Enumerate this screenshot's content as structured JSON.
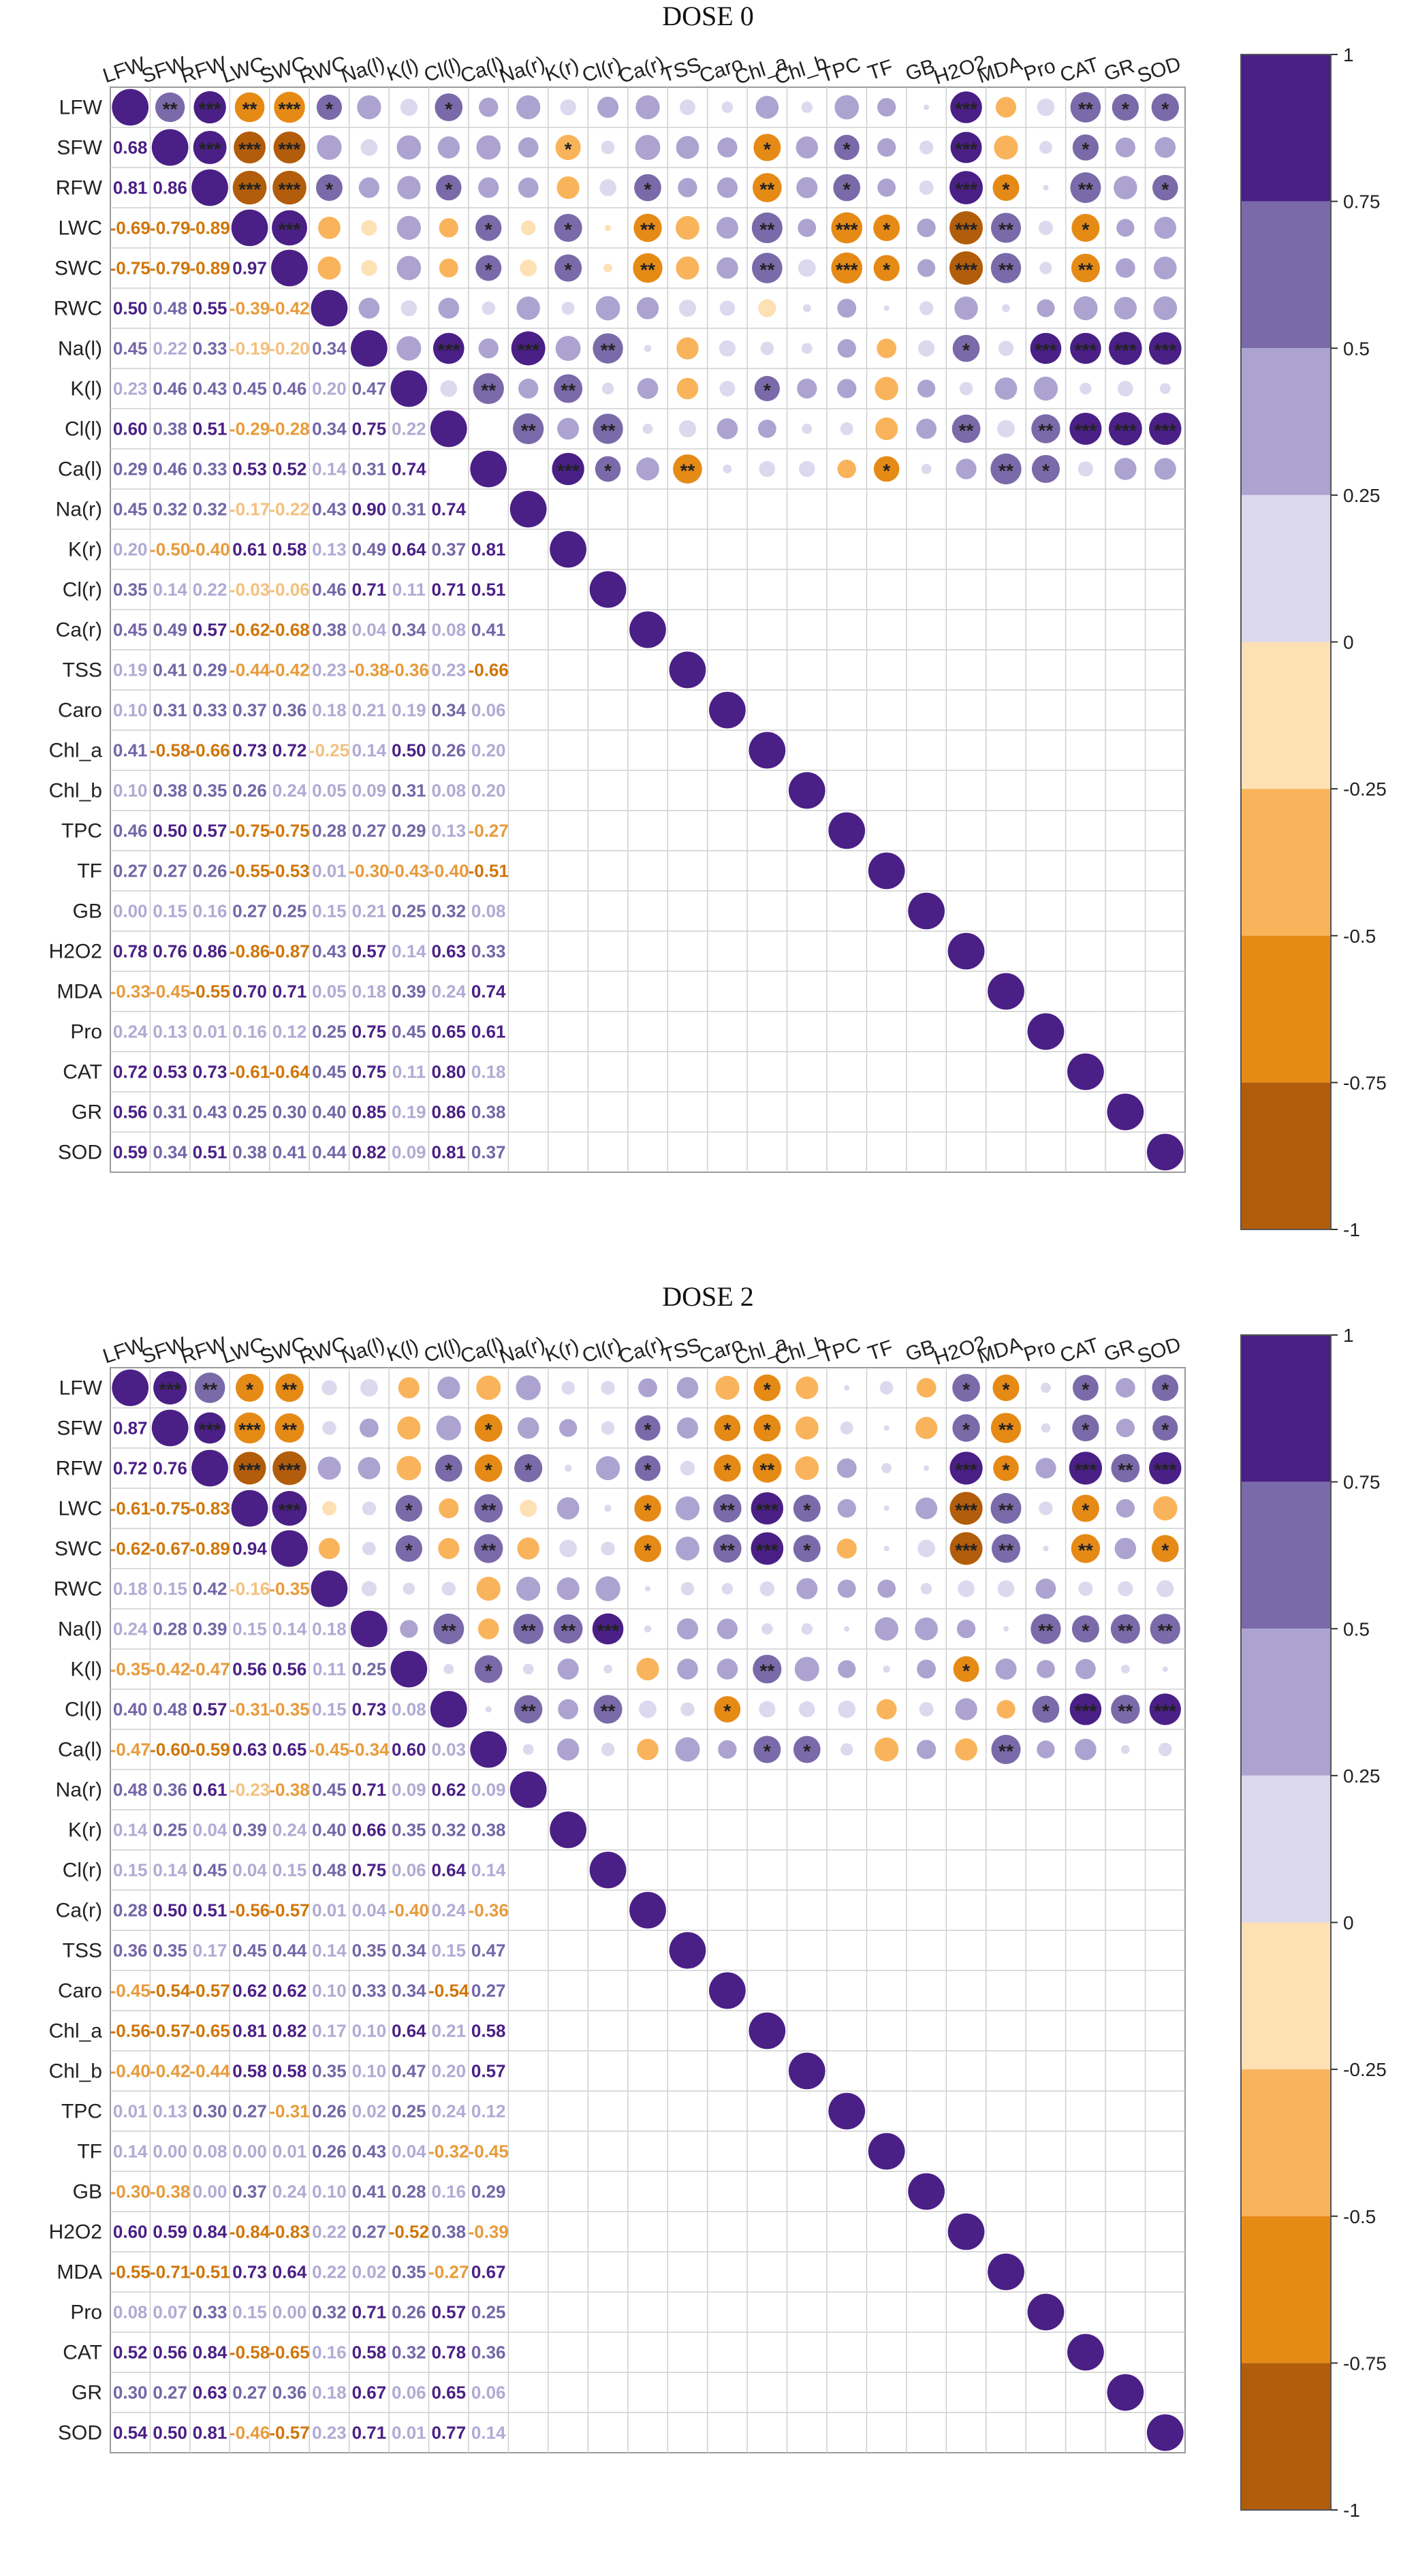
{
  "chart_data": [
    {
      "type": "heatmap",
      "title": "DOSE 0",
      "variables": [
        "LFW",
        "SFW",
        "RFW",
        "LWC",
        "SWC",
        "RWC",
        "Na(l)",
        "K(l)",
        "Cl(l)",
        "Ca(l)",
        "Na(r)",
        "K(r)",
        "Cl(r)",
        "Ca(r)",
        "TSS",
        "Caro",
        "Chl_a",
        "Chl_b",
        "TPC",
        "TF",
        "GB",
        "H2O2",
        "MDA",
        "Pro",
        "CAT",
        "GR",
        "SOD"
      ],
      "lower_labels": [
        [
          "0.68"
        ],
        [
          "0.81",
          "0.86"
        ],
        [
          "-0.69",
          "-0.79",
          "-0.89"
        ],
        [
          "-0.75",
          "-0.79",
          "-0.89",
          "0.97"
        ],
        [
          "0.50",
          "0.48",
          "0.55",
          "-0.39",
          "-0.42"
        ],
        [
          "0.45",
          "0.22",
          "0.33",
          "-0.19",
          "-0.20",
          "0.34"
        ],
        [
          "0.23",
          "0.46",
          "0.43",
          "0.45",
          "0.46",
          "0.20",
          "0.47"
        ],
        [
          "0.60",
          "0.38",
          "0.51",
          "-0.29",
          "-0.28",
          "0.34",
          "0.75",
          "0.22"
        ],
        [
          "0.29",
          "0.46",
          "0.33",
          "0.53",
          "0.52",
          "0.14",
          "0.31",
          "0.74"
        ],
        [
          "0.45",
          "0.32",
          "0.32",
          "-0.17",
          "-0.22",
          "0.43",
          "0.90",
          "0.31",
          "0.74"
        ],
        [
          "0.20",
          "-0.50",
          "-0.40",
          "0.61",
          "0.58",
          "0.13",
          "0.49",
          "0.64",
          "0.37",
          "0.81"
        ],
        [
          "0.35",
          "0.14",
          "0.22",
          "-0.03",
          "-0.06",
          "0.46",
          "0.71",
          "0.11",
          "0.71",
          "0.51"
        ],
        [
          "0.45",
          "0.49",
          "0.57",
          "-0.62",
          "-0.68",
          "0.38",
          "0.04",
          "0.34",
          "0.08",
          "0.41"
        ],
        [
          "0.19",
          "0.41",
          "0.29",
          "-0.44",
          "-0.42",
          "0.23",
          "-0.38",
          "-0.36",
          "0.23",
          "-0.66"
        ],
        [
          "0.10",
          "0.31",
          "0.33",
          "0.37",
          "0.36",
          "0.18",
          "0.21",
          "0.19",
          "0.34",
          "0.06"
        ],
        [
          "0.41",
          "-0.58",
          "-0.66",
          "0.73",
          "0.72",
          "-0.25",
          "0.14",
          "0.50",
          "0.26",
          "0.20"
        ],
        [
          "0.10",
          "0.38",
          "0.35",
          "0.26",
          "0.24",
          "0.05",
          "0.09",
          "0.31",
          "0.08",
          "0.20"
        ],
        [
          "0.46",
          "0.50",
          "0.57",
          "-0.75",
          "-0.75",
          "0.28",
          "0.27",
          "0.29",
          "0.13",
          "-0.27"
        ],
        [
          "0.27",
          "0.27",
          "0.26",
          "-0.55",
          "-0.53",
          "0.01",
          "-0.30",
          "-0.43",
          "-0.40",
          "-0.51"
        ],
        [
          "0.00",
          "0.15",
          "0.16",
          "0.27",
          "0.25",
          "0.15",
          "0.21",
          "0.25",
          "0.32",
          "0.08"
        ],
        [
          "0.78",
          "0.76",
          "0.86",
          "-0.86",
          "-0.87",
          "0.43",
          "0.57",
          "0.14",
          "0.63",
          "0.33"
        ],
        [
          "-0.33",
          "-0.45",
          "-0.55",
          "0.70",
          "0.71",
          "0.05",
          "0.18",
          "0.39",
          "0.24",
          "0.74"
        ],
        [
          "0.24",
          "0.13",
          "0.01",
          "0.16",
          "0.12",
          "0.25",
          "0.75",
          "0.45",
          "0.65",
          "0.61"
        ],
        [
          "0.72",
          "0.53",
          "0.73",
          "-0.61",
          "-0.64",
          "0.45",
          "0.75",
          "0.11",
          "0.80",
          "0.18"
        ],
        [
          "0.56",
          "0.31",
          "0.43",
          "0.25",
          "0.30",
          "0.40",
          "0.85",
          "0.19",
          "0.86",
          "0.38"
        ],
        [
          "0.59",
          "0.34",
          "0.51",
          "0.38",
          "0.41",
          "0.44",
          "0.82",
          "0.09",
          "0.81",
          "0.37"
        ]
      ],
      "legend_ticks": [
        "1",
        "0.75",
        "0.5",
        "0.25",
        "0",
        "-0.25",
        "-0.5",
        "-0.75",
        "-1"
      ],
      "legend_colors": [
        "#4a1f86",
        "#7b6aa9",
        "#aca3d0",
        "#dcd9ee",
        "#fde1b4",
        "#f9b45b",
        "#e68a16",
        "#b25d0b"
      ]
    },
    {
      "type": "heatmap",
      "title": "DOSE 2",
      "variables": [
        "LFW",
        "SFW",
        "RFW",
        "LWC",
        "SWC",
        "RWC",
        "Na(l)",
        "K(l)",
        "Cl(l)",
        "Ca(l)",
        "Na(r)",
        "K(r)",
        "Cl(r)",
        "Ca(r)",
        "TSS",
        "Caro",
        "Chl_a",
        "Chl_b",
        "TPC",
        "TF",
        "GB",
        "H2O2",
        "MDA",
        "Pro",
        "CAT",
        "GR",
        "SOD"
      ],
      "lower_labels": [
        [
          "0.87"
        ],
        [
          "0.72",
          "0.76"
        ],
        [
          "-0.61",
          "-0.75",
          "-0.83"
        ],
        [
          "-0.62",
          "-0.67",
          "-0.89",
          "0.94"
        ],
        [
          "0.18",
          "0.15",
          "0.42",
          "-0.16",
          "-0.35"
        ],
        [
          "0.24",
          "0.28",
          "0.39",
          "0.15",
          "0.14",
          "0.18"
        ],
        [
          "-0.35",
          "-0.42",
          "-0.47",
          "0.56",
          "0.56",
          "0.11",
          "0.25"
        ],
        [
          "0.40",
          "0.48",
          "0.57",
          "-0.31",
          "-0.35",
          "0.15",
          "0.73",
          "0.08"
        ],
        [
          "-0.47",
          "-0.60",
          "-0.59",
          "0.63",
          "0.65",
          "-0.45",
          "-0.34",
          "0.60",
          "0.03"
        ],
        [
          "0.48",
          "0.36",
          "0.61",
          "-0.23",
          "-0.38",
          "0.45",
          "0.71",
          "0.09",
          "0.62",
          "0.09"
        ],
        [
          "0.14",
          "0.25",
          "0.04",
          "0.39",
          "0.24",
          "0.40",
          "0.66",
          "0.35",
          "0.32",
          "0.38"
        ],
        [
          "0.15",
          "0.14",
          "0.45",
          "0.04",
          "0.15",
          "0.48",
          "0.75",
          "0.06",
          "0.64",
          "0.14"
        ],
        [
          "0.28",
          "0.50",
          "0.51",
          "-0.56",
          "-0.57",
          "0.01",
          "0.04",
          "-0.40",
          "0.24",
          "-0.36"
        ],
        [
          "0.36",
          "0.35",
          "0.17",
          "0.45",
          "0.44",
          "0.14",
          "0.35",
          "0.34",
          "0.15",
          "0.47"
        ],
        [
          "-0.45",
          "-0.54",
          "-0.57",
          "0.62",
          "0.62",
          "0.10",
          "0.33",
          "0.34",
          "-0.54",
          "0.27"
        ],
        [
          "-0.56",
          "-0.57",
          "-0.65",
          "0.81",
          "0.82",
          "0.17",
          "0.10",
          "0.64",
          "0.21",
          "0.58"
        ],
        [
          "-0.40",
          "-0.42",
          "-0.44",
          "0.58",
          "0.58",
          "0.35",
          "0.10",
          "0.47",
          "0.20",
          "0.57"
        ],
        [
          "0.01",
          "0.13",
          "0.30",
          "0.27",
          "-0.31",
          "0.26",
          "0.02",
          "0.25",
          "0.24",
          "0.12"
        ],
        [
          "0.14",
          "0.00",
          "0.08",
          "0.00",
          "0.01",
          "0.26",
          "0.43",
          "0.04",
          "-0.32",
          "-0.45"
        ],
        [
          "-0.30",
          "-0.38",
          "0.00",
          "0.37",
          "0.24",
          "0.10",
          "0.41",
          "0.28",
          "0.16",
          "0.29"
        ],
        [
          "0.60",
          "0.59",
          "0.84",
          "-0.84",
          "-0.83",
          "0.22",
          "0.27",
          "-0.52",
          "0.38",
          "-0.39"
        ],
        [
          "-0.55",
          "-0.71",
          "-0.51",
          "0.73",
          "0.64",
          "0.22",
          "0.02",
          "0.35",
          "-0.27",
          "0.67"
        ],
        [
          "0.08",
          "0.07",
          "0.33",
          "0.15",
          "0.00",
          "0.32",
          "0.71",
          "0.26",
          "0.57",
          "0.25"
        ],
        [
          "0.52",
          "0.56",
          "0.84",
          "-0.58",
          "-0.65",
          "0.16",
          "0.58",
          "0.32",
          "0.78",
          "0.36"
        ],
        [
          "0.30",
          "0.27",
          "0.63",
          "0.27",
          "0.36",
          "0.18",
          "0.67",
          "0.06",
          "0.65",
          "0.06"
        ],
        [
          "0.54",
          "0.50",
          "0.81",
          "-0.46",
          "-0.57",
          "0.23",
          "0.71",
          "0.01",
          "0.77",
          "0.14"
        ]
      ],
      "legend_ticks": [
        "1",
        "0.75",
        "0.5",
        "0.25",
        "0",
        "-0.25",
        "-0.5",
        "-0.75",
        "-1"
      ],
      "legend_colors": [
        "#4a1f86",
        "#7b6aa9",
        "#aca3d0",
        "#dcd9ee",
        "#fde1b4",
        "#f9b45b",
        "#e68a16",
        "#b25d0b"
      ]
    }
  ]
}
